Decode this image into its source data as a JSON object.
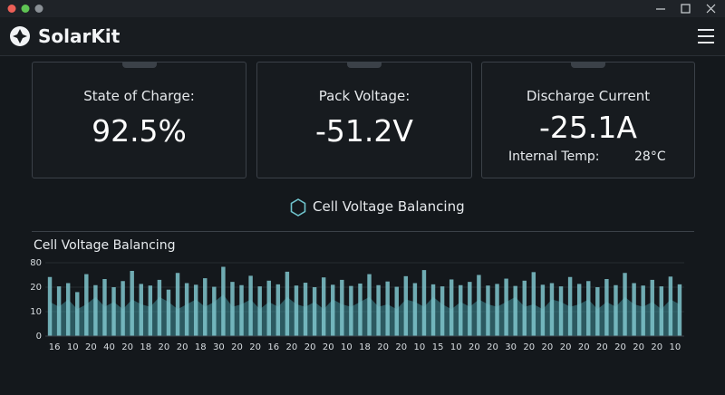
{
  "app": {
    "name": "SolarKit"
  },
  "cards": [
    {
      "label": "State of Charge:",
      "value": "92.5%"
    },
    {
      "label": "Pack Voltage:",
      "value": "-51.2V"
    },
    {
      "label": "Discharge Current",
      "value": "-25.1A",
      "extra_label": "Internal Temp:",
      "extra_value": "28°C"
    }
  ],
  "status": "Cell Voltage Balancing",
  "chart_data": {
    "type": "bar",
    "title": "Cell Voltage Balancing",
    "color": "#7fc6cd",
    "area_color": "#3f8f99",
    "categories": [
      "16",
      null,
      "10",
      null,
      "20",
      null,
      "40",
      null,
      "20",
      null,
      "18",
      null,
      "20",
      null,
      "20",
      null,
      "18",
      null,
      "30",
      null,
      "20",
      null,
      "20",
      null,
      "16",
      null,
      "20",
      null,
      "20",
      null,
      "20",
      null,
      "10",
      null,
      "18",
      null,
      "20",
      null,
      "20",
      null,
      "10",
      null,
      "15",
      null,
      "10",
      null,
      "20",
      null,
      "20",
      null,
      "30",
      null,
      "20",
      null,
      "20",
      null,
      "20",
      null,
      "20",
      null,
      "20",
      null,
      "20",
      null,
      "20",
      null,
      "20",
      null,
      "10",
      null
    ],
    "values": [
      45,
      22,
      30,
      18,
      52,
      25,
      40,
      20,
      35,
      60,
      28,
      24,
      38,
      19,
      55,
      30,
      26,
      42,
      21,
      70,
      33,
      25,
      48,
      22,
      36,
      27,
      58,
      24,
      31,
      20,
      44,
      26,
      38,
      23,
      29,
      52,
      25,
      34,
      21,
      47,
      30,
      62,
      27,
      22,
      39,
      25,
      33,
      50,
      24,
      28,
      41,
      23,
      36,
      57,
      26,
      30,
      22,
      45,
      28,
      35,
      20,
      40,
      25,
      55,
      30,
      24,
      38,
      22,
      46,
      27
    ],
    "area_values": [
      14,
      12,
      15,
      11,
      13,
      16,
      12,
      14,
      11,
      15,
      13,
      12,
      16,
      14,
      11,
      13,
      15,
      12,
      14,
      17,
      12,
      13,
      15,
      11,
      14,
      12,
      16,
      13,
      12,
      14,
      11,
      15,
      13,
      12,
      14,
      16,
      12,
      13,
      11,
      15,
      14,
      12,
      16,
      13,
      11,
      14,
      12,
      15,
      13,
      12,
      14,
      16,
      12,
      13,
      11,
      15,
      14,
      12,
      13,
      15,
      11,
      14,
      12,
      16,
      13,
      12,
      14,
      11,
      15,
      13
    ],
    "ylim": [
      0,
      80
    ],
    "yticks": [
      0,
      10,
      20,
      80
    ],
    "grid": true
  }
}
